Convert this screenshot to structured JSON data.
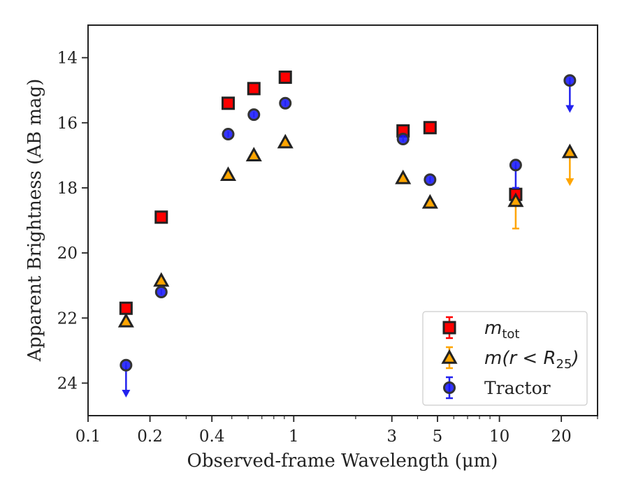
{
  "chart_data": {
    "type": "scatter",
    "title": "",
    "xlabel": "Observed-frame Wavelength (μm)",
    "ylabel": "Apparent Brightness (AB mag)",
    "xscale": "log",
    "xlim": [
      0.1,
      30
    ],
    "ylim": [
      25.0,
      13.0
    ],
    "y_inverted": true,
    "grid": false,
    "legend_position": "lower-right",
    "x_ticks": [
      {
        "value": 0.1,
        "label": "0.1"
      },
      {
        "value": 0.2,
        "label": "0.2"
      },
      {
        "value": 0.4,
        "label": "0.4"
      },
      {
        "value": 1,
        "label": "1"
      },
      {
        "value": 3,
        "label": "3"
      },
      {
        "value": 5,
        "label": "5"
      },
      {
        "value": 10,
        "label": "10"
      },
      {
        "value": 20,
        "label": "20"
      }
    ],
    "y_ticks": [
      {
        "value": 14,
        "label": "14"
      },
      {
        "value": 16,
        "label": "16"
      },
      {
        "value": 18,
        "label": "18"
      },
      {
        "value": 20,
        "label": "20"
      },
      {
        "value": 22,
        "label": "22"
      },
      {
        "value": 24,
        "label": "24"
      }
    ],
    "series": [
      {
        "name": "m_tot",
        "legend_main": "m",
        "legend_sub": "tot",
        "marker": "square",
        "color": "#ff0000",
        "error_color": "#ff0000",
        "points": [
          {
            "x": 0.153,
            "y": 21.7
          },
          {
            "x": 0.227,
            "y": 18.9
          },
          {
            "x": 0.48,
            "y": 15.4
          },
          {
            "x": 0.64,
            "y": 14.95
          },
          {
            "x": 0.91,
            "y": 14.6
          },
          {
            "x": 3.4,
            "y": 16.25
          },
          {
            "x": 4.6,
            "y": 16.15
          },
          {
            "x": 12.0,
            "y": 18.2
          }
        ]
      },
      {
        "name": "m(r < R25)",
        "legend_main": "m(r < R",
        "legend_sub": "25",
        "legend_tail": ")",
        "marker": "triangle",
        "color": "#ffa500",
        "error_color": "#ffa500",
        "points": [
          {
            "x": 0.153,
            "y": 22.1
          },
          {
            "x": 0.227,
            "y": 20.85
          },
          {
            "x": 0.48,
            "y": 17.6
          },
          {
            "x": 0.64,
            "y": 17.0
          },
          {
            "x": 0.91,
            "y": 16.6
          },
          {
            "x": 3.4,
            "y": 17.7
          },
          {
            "x": 4.6,
            "y": 18.45
          },
          {
            "x": 12.0,
            "y": 18.4,
            "err_low": 19.25
          },
          {
            "x": 22.0,
            "y": 16.9,
            "upper_limit_to": 17.9
          }
        ]
      },
      {
        "name": "Tractor",
        "legend_main": "Tractor",
        "marker": "circle",
        "color": "#1010ff",
        "error_color": "#2222ee",
        "points": [
          {
            "x": 0.153,
            "y": 23.45,
            "upper_limit_to": 24.4
          },
          {
            "x": 0.227,
            "y": 21.2
          },
          {
            "x": 0.48,
            "y": 16.35
          },
          {
            "x": 0.64,
            "y": 15.75
          },
          {
            "x": 0.91,
            "y": 15.4
          },
          {
            "x": 3.4,
            "y": 16.5
          },
          {
            "x": 4.6,
            "y": 17.75
          },
          {
            "x": 12.0,
            "y": 17.3,
            "err_low": 18.0
          },
          {
            "x": 22.0,
            "y": 14.7,
            "upper_limit_to": 15.65
          }
        ]
      }
    ]
  }
}
